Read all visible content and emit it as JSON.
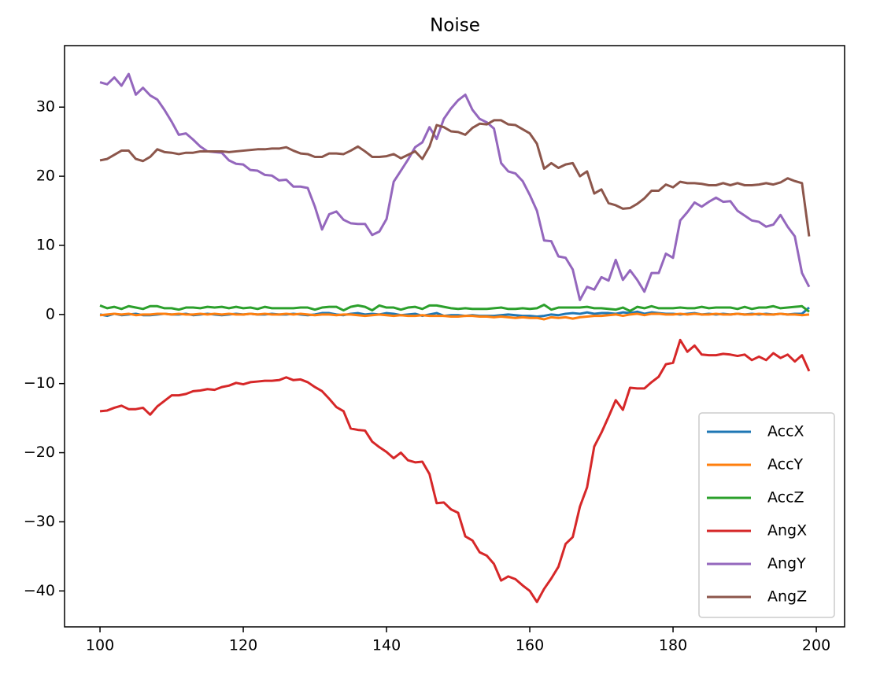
{
  "chart_data": {
    "type": "line",
    "title": "Noise",
    "x": [
      100,
      101,
      102,
      103,
      104,
      105,
      106,
      107,
      108,
      109,
      110,
      111,
      112,
      113,
      114,
      115,
      116,
      117,
      118,
      119,
      120,
      121,
      122,
      123,
      124,
      125,
      126,
      127,
      128,
      129,
      130,
      131,
      132,
      133,
      134,
      135,
      136,
      137,
      138,
      139,
      140,
      141,
      142,
      143,
      144,
      145,
      146,
      147,
      148,
      149,
      150,
      151,
      152,
      153,
      154,
      155,
      156,
      157,
      158,
      159,
      160,
      161,
      162,
      163,
      164,
      165,
      166,
      167,
      168,
      169,
      170,
      171,
      172,
      173,
      174,
      175,
      176,
      177,
      178,
      179,
      180,
      181,
      182,
      183,
      184,
      185,
      186,
      187,
      188,
      189,
      190,
      191,
      192,
      193,
      194,
      195,
      196,
      197,
      198,
      199
    ],
    "series": [
      {
        "name": "AccX",
        "color": "#1f77b4",
        "values": [
          0.0,
          -0.2,
          0.1,
          -0.1,
          0.0,
          0.1,
          -0.1,
          -0.1,
          0.0,
          0.1,
          0.0,
          0.0,
          0.1,
          -0.1,
          0.0,
          0.1,
          0.0,
          -0.1,
          0.0,
          0.1,
          0.0,
          0.1,
          0.0,
          0.0,
          0.1,
          0.0,
          0.0,
          0.1,
          0.0,
          -0.1,
          0.0,
          0.2,
          0.2,
          0.0,
          -0.1,
          0.1,
          0.2,
          0.0,
          0.1,
          0.0,
          0.2,
          0.1,
          -0.1,
          0.0,
          0.1,
          -0.2,
          0.0,
          0.2,
          -0.2,
          -0.1,
          -0.1,
          -0.2,
          -0.1,
          -0.2,
          -0.2,
          -0.2,
          -0.1,
          0.0,
          -0.1,
          -0.2,
          -0.2,
          -0.3,
          -0.2,
          0.0,
          -0.1,
          0.1,
          0.2,
          0.1,
          0.3,
          0.1,
          0.2,
          0.2,
          0.1,
          0.3,
          0.2,
          0.4,
          0.1,
          0.3,
          0.2,
          0.1,
          0.1,
          0.0,
          0.1,
          0.2,
          0.0,
          0.1,
          0.0,
          0.1,
          0.0,
          0.1,
          0.0,
          0.1,
          0.0,
          0.1,
          0.0,
          0.1,
          0.0,
          0.1,
          0.1,
          1.0
        ]
      },
      {
        "name": "AccY",
        "color": "#ff7f0e",
        "values": [
          -0.1,
          0.0,
          0.1,
          0.0,
          0.1,
          -0.1,
          0.0,
          0.0,
          0.1,
          0.1,
          0.0,
          0.1,
          0.0,
          0.0,
          0.1,
          0.0,
          0.1,
          0.0,
          0.1,
          0.0,
          0.0,
          0.1,
          0.0,
          0.1,
          0.0,
          0.0,
          0.1,
          0.0,
          0.1,
          0.0,
          -0.1,
          0.0,
          0.0,
          -0.1,
          0.0,
          0.0,
          -0.1,
          -0.2,
          -0.1,
          0.0,
          -0.1,
          -0.2,
          -0.1,
          -0.2,
          -0.2,
          -0.1,
          -0.2,
          -0.2,
          -0.2,
          -0.3,
          -0.3,
          -0.2,
          -0.2,
          -0.3,
          -0.3,
          -0.4,
          -0.3,
          -0.4,
          -0.5,
          -0.4,
          -0.5,
          -0.5,
          -0.7,
          -0.4,
          -0.5,
          -0.4,
          -0.6,
          -0.4,
          -0.3,
          -0.2,
          -0.2,
          -0.1,
          0.0,
          -0.2,
          0.0,
          0.1,
          -0.1,
          0.1,
          0.1,
          0.0,
          0.0,
          0.1,
          0.0,
          0.1,
          0.0,
          0.0,
          0.1,
          0.0,
          0.0,
          0.1,
          0.0,
          0.0,
          0.1,
          0.0,
          0.0,
          0.1,
          0.0,
          0.0,
          -0.1,
          0.0
        ]
      },
      {
        "name": "AccZ",
        "color": "#2ca02c",
        "values": [
          1.3,
          0.9,
          1.1,
          0.8,
          1.2,
          1.0,
          0.8,
          1.2,
          1.2,
          0.9,
          0.9,
          0.7,
          1.0,
          1.0,
          0.9,
          1.1,
          1.0,
          1.1,
          0.9,
          1.1,
          0.9,
          1.0,
          0.8,
          1.1,
          0.9,
          0.9,
          0.9,
          0.9,
          1.0,
          1.0,
          0.7,
          1.0,
          1.1,
          1.1,
          0.6,
          1.1,
          1.3,
          1.1,
          0.6,
          1.3,
          1.0,
          1.0,
          0.7,
          1.0,
          1.1,
          0.8,
          1.3,
          1.3,
          1.1,
          0.9,
          0.8,
          0.9,
          0.8,
          0.8,
          0.8,
          0.9,
          1.0,
          0.8,
          0.8,
          0.9,
          0.8,
          0.9,
          1.4,
          0.7,
          1.0,
          1.0,
          1.0,
          1.0,
          1.1,
          0.9,
          0.9,
          0.8,
          0.7,
          1.0,
          0.5,
          1.1,
          0.9,
          1.2,
          0.9,
          0.9,
          0.9,
          1.0,
          0.9,
          0.9,
          1.1,
          0.9,
          1.0,
          1.0,
          1.0,
          0.8,
          1.1,
          0.8,
          1.0,
          1.0,
          1.2,
          0.9,
          1.0,
          1.1,
          1.2,
          0.4
        ]
      },
      {
        "name": "AngX",
        "color": "#d62728",
        "values": [
          -14.0,
          -13.9,
          -13.5,
          -13.2,
          -13.7,
          -13.7,
          -13.5,
          -14.5,
          -13.3,
          -12.5,
          -11.7,
          -11.7,
          -11.5,
          -11.1,
          -11.0,
          -10.8,
          -10.9,
          -10.5,
          -10.3,
          -9.9,
          -10.1,
          -9.8,
          -9.7,
          -9.6,
          -9.6,
          -9.5,
          -9.1,
          -9.5,
          -9.4,
          -9.8,
          -10.5,
          -11.1,
          -12.2,
          -13.4,
          -14.0,
          -16.5,
          -16.7,
          -16.8,
          -18.4,
          -19.2,
          -19.9,
          -20.8,
          -20.0,
          -21.1,
          -21.4,
          -21.3,
          -23.1,
          -27.3,
          -27.2,
          -28.2,
          -28.7,
          -32.1,
          -32.7,
          -34.4,
          -34.9,
          -36.1,
          -38.5,
          -37.9,
          -38.3,
          -39.2,
          -40.0,
          -41.6,
          -39.7,
          -38.2,
          -36.5,
          -33.2,
          -32.2,
          -27.8,
          -25.0,
          -19.1,
          -17.1,
          -14.8,
          -12.4,
          -13.8,
          -10.6,
          -10.7,
          -10.7,
          -9.8,
          -9.0,
          -7.2,
          -7.0,
          -3.7,
          -5.4,
          -4.5,
          -5.8,
          -5.9,
          -5.9,
          -5.7,
          -5.8,
          -6.0,
          -5.8,
          -6.6,
          -6.1,
          -6.6,
          -5.6,
          -6.3,
          -5.8,
          -6.8,
          -5.9,
          -8.2
        ]
      },
      {
        "name": "AngY",
        "color": "#9467bd",
        "values": [
          33.6,
          33.3,
          34.3,
          33.1,
          34.8,
          31.8,
          32.8,
          31.7,
          31.1,
          29.6,
          27.9,
          26.0,
          26.2,
          25.3,
          24.3,
          23.6,
          23.5,
          23.4,
          22.3,
          21.8,
          21.7,
          20.9,
          20.8,
          20.2,
          20.1,
          19.4,
          19.5,
          18.5,
          18.5,
          18.3,
          15.6,
          12.3,
          14.5,
          14.9,
          13.7,
          13.2,
          13.1,
          13.1,
          11.5,
          12.0,
          13.8,
          19.2,
          20.8,
          22.4,
          24.2,
          24.9,
          27.1,
          25.4,
          28.3,
          29.8,
          31.0,
          31.8,
          29.6,
          28.3,
          27.8,
          26.9,
          21.9,
          20.7,
          20.4,
          19.3,
          17.3,
          15.0,
          10.7,
          10.6,
          8.4,
          8.2,
          6.5,
          2.1,
          4.0,
          3.6,
          5.4,
          4.9,
          7.9,
          5.0,
          6.4,
          5.0,
          3.3,
          6.0,
          6.0,
          8.8,
          8.2,
          13.6,
          14.8,
          16.2,
          15.6,
          16.3,
          16.9,
          16.3,
          16.4,
          15.0,
          14.3,
          13.6,
          13.4,
          12.7,
          13.0,
          14.4,
          12.7,
          11.3,
          6.0,
          4.0
        ]
      },
      {
        "name": "AngZ",
        "color": "#8c564b",
        "values": [
          22.3,
          22.5,
          23.1,
          23.7,
          23.7,
          22.5,
          22.2,
          22.8,
          23.9,
          23.5,
          23.4,
          23.2,
          23.4,
          23.4,
          23.6,
          23.6,
          23.6,
          23.6,
          23.5,
          23.6,
          23.7,
          23.8,
          23.9,
          23.9,
          24.0,
          24.0,
          24.2,
          23.7,
          23.3,
          23.2,
          22.8,
          22.8,
          23.3,
          23.3,
          23.2,
          23.7,
          24.3,
          23.6,
          22.8,
          22.8,
          22.9,
          23.2,
          22.6,
          23.1,
          23.6,
          22.5,
          24.3,
          27.4,
          27.1,
          26.5,
          26.4,
          26.0,
          27.0,
          27.6,
          27.5,
          28.1,
          28.1,
          27.5,
          27.4,
          26.8,
          26.2,
          24.7,
          21.1,
          21.9,
          21.2,
          21.7,
          21.9,
          20.0,
          20.7,
          17.5,
          18.1,
          16.1,
          15.8,
          15.3,
          15.4,
          16.0,
          16.8,
          17.9,
          17.9,
          18.8,
          18.4,
          19.2,
          19.0,
          19.0,
          18.9,
          18.7,
          18.7,
          19.0,
          18.7,
          19.0,
          18.7,
          18.7,
          18.8,
          19.0,
          18.8,
          19.1,
          19.7,
          19.3,
          19.0,
          11.3
        ]
      }
    ],
    "xlim": [
      95.05,
      203.95
    ],
    "xticks": [
      100,
      120,
      140,
      160,
      180,
      200
    ],
    "ylim": [
      -45.2,
      38.9
    ],
    "yticks": [
      {
        "value": -40,
        "label": "−40"
      },
      {
        "value": -30,
        "label": "−30"
      },
      {
        "value": -20,
        "label": "−20"
      },
      {
        "value": -10,
        "label": "−10"
      },
      0,
      10,
      20,
      30
    ],
    "legend": "lower right",
    "grid": false
  }
}
